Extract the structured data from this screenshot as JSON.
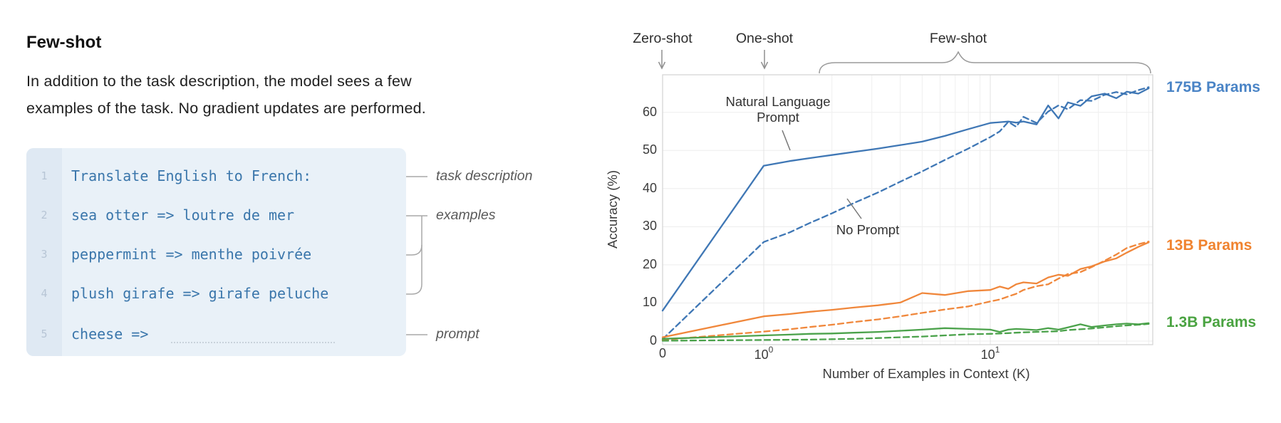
{
  "panel": {
    "heading": "Few-shot",
    "description_line1": "In addition to the task description, the model sees a few",
    "description_line2": "examples of the task. No gradient updates are performed.",
    "code": {
      "lines": [
        {
          "num": "1",
          "text": "Translate English to French:"
        },
        {
          "num": "2",
          "text": "sea otter => loutre de mer"
        },
        {
          "num": "3",
          "text": "peppermint => menthe poivrée"
        },
        {
          "num": "4",
          "text": "plush girafe => girafe peluche"
        },
        {
          "num": "5",
          "text": "cheese =>"
        }
      ]
    },
    "annotations": {
      "task_description": "task description",
      "examples": "examples",
      "prompt": "prompt"
    }
  },
  "chart": {
    "shot_labels": {
      "zero": "Zero-shot",
      "one": "One-shot",
      "few": "Few-shot"
    },
    "annotations": {
      "nl_prompt_line1": "Natural Language",
      "nl_prompt_line2": "Prompt",
      "no_prompt": "No Prompt"
    },
    "series_labels": [
      {
        "text": "175B Params",
        "color": "#4a84c6"
      },
      {
        "text": "13B Params",
        "color": "#f0832f"
      },
      {
        "text": "1.3B Params",
        "color": "#4aa341"
      }
    ],
    "xticks": [
      {
        "base": "0",
        "exp": ""
      },
      {
        "base": "10",
        "exp": "0"
      },
      {
        "base": "10",
        "exp": "1"
      }
    ]
  },
  "chart_data": {
    "type": "line",
    "title": "",
    "xlabel": "Number of Examples in Context  (K)",
    "ylabel": "Accuracy (%)",
    "xscale": "symlog",
    "xlim": [
      0,
      52
    ],
    "ylim": [
      0,
      70
    ],
    "grid": true,
    "legend_position": "right-edge-colored-labels",
    "yticks": [
      "0",
      "10",
      "20",
      "30",
      "40",
      "50",
      "60"
    ],
    "xtick_values": [
      0,
      1,
      10
    ],
    "x": [
      0,
      1,
      1.3,
      1.6,
      2,
      2.5,
      3.2,
      4,
      5,
      6.3,
      8,
      10,
      11,
      12,
      13,
      14,
      16,
      18,
      20,
      22,
      25,
      28,
      32,
      36,
      40,
      45,
      50
    ],
    "series": [
      {
        "name": "175B Params (Natural Language Prompt)",
        "color": "#3f77b5",
        "style": "solid",
        "values": [
          8,
          46,
          47.2,
          48,
          48.8,
          49.6,
          50.5,
          51.4,
          52.3,
          53.8,
          55.6,
          57.2,
          57.4,
          57.6,
          57.3,
          57.6,
          56.8,
          61.8,
          58.4,
          62.6,
          61.7,
          64.2,
          64.9,
          63.7,
          65.4,
          64.9,
          66.3
        ]
      },
      {
        "name": "175B Params (No Prompt)",
        "color": "#3f77b5",
        "style": "dashed",
        "values": [
          0.5,
          26,
          28.5,
          31,
          33.5,
          36.2,
          39,
          41.8,
          44.5,
          47.5,
          50.5,
          53.5,
          55,
          57.5,
          56.2,
          58.8,
          57.2,
          60.2,
          61.8,
          60.8,
          63.2,
          63,
          64.6,
          65.3,
          64.7,
          65.8,
          66.6
        ]
      },
      {
        "name": "13B Params (Natural Language Prompt)",
        "color": "#f0873b",
        "style": "solid",
        "values": [
          1,
          6.5,
          7.1,
          7.7,
          8.2,
          8.8,
          9.4,
          10.1,
          12.6,
          12.1,
          13.1,
          13.4,
          14.3,
          13.7,
          14.9,
          15.4,
          15.1,
          16.7,
          17.4,
          17.1,
          18.9,
          19.6,
          20.9,
          21.7,
          23.2,
          24.7,
          25.9
        ]
      },
      {
        "name": "13B Params (No Prompt)",
        "color": "#f0873b",
        "style": "dashed",
        "values": [
          0.3,
          2.5,
          3.1,
          3.7,
          4.3,
          5,
          5.7,
          6.5,
          7.4,
          8.3,
          9.1,
          10.4,
          10.9,
          11.7,
          12.4,
          13.4,
          14.4,
          14.9,
          16.4,
          17.6,
          18.1,
          19.4,
          21.1,
          22.7,
          24.4,
          25.4,
          26.1
        ]
      },
      {
        "name": "1.3B Params (Natural Language Prompt)",
        "color": "#4ba24b",
        "style": "solid",
        "values": [
          0.6,
          1.5,
          1.7,
          1.9,
          2,
          2.2,
          2.4,
          2.7,
          3,
          3.4,
          3.2,
          3,
          2.4,
          3,
          3.2,
          3.1,
          2.9,
          3.4,
          3,
          3.6,
          4.4,
          3.7,
          4.1,
          4.4,
          4.6,
          4.4,
          4.7
        ]
      },
      {
        "name": "1.3B Params (No Prompt)",
        "color": "#4ba24b",
        "style": "dashed",
        "values": [
          0.1,
          0.3,
          0.35,
          0.4,
          0.5,
          0.6,
          0.8,
          1,
          1.2,
          1.5,
          1.8,
          1.9,
          2,
          2.1,
          2.2,
          2.3,
          2.4,
          2.5,
          2.6,
          2.9,
          3.1,
          3.3,
          3.6,
          3.9,
          4.1,
          4.3,
          4.5
        ]
      }
    ]
  }
}
